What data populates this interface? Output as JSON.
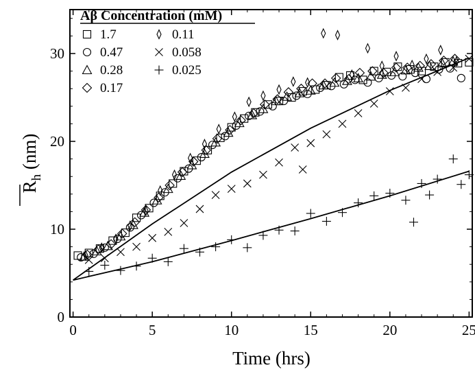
{
  "chart_data": {
    "type": "scatter",
    "xlabel": "Time (hrs)",
    "ylabel": "R",
    "ylabel_sub": "h",
    "ylabel_unit": " (nm)",
    "xlim": [
      -0.2,
      25.2
    ],
    "ylim": [
      0,
      35
    ],
    "xticks": [
      0,
      5,
      10,
      15,
      20,
      25
    ],
    "yticks": [
      0,
      10,
      20,
      30
    ],
    "grid": false,
    "legend": {
      "title": "Aβ Concentration (mM)",
      "placement": "top-left"
    },
    "series": [
      {
        "name": "1.7",
        "marker": "square",
        "legend_col": 0,
        "legend_row": 0,
        "x": [
          0.3,
          1.0,
          1.7,
          2.5,
          3.3,
          4.0,
          4.8,
          5.5,
          6.3,
          7.0,
          7.8,
          8.5,
          9.3,
          10.0,
          10.8,
          11.5,
          12.3,
          13.0,
          13.8,
          14.5,
          15.3,
          16.0,
          16.8,
          17.5,
          18.3,
          19.0,
          19.8,
          20.5,
          21.3,
          22.0,
          22.8,
          23.5,
          24.3,
          25.0
        ],
        "y": [
          7.0,
          7.3,
          7.8,
          8.7,
          9.6,
          11.3,
          12.4,
          13.8,
          15.2,
          16.6,
          17.8,
          19.0,
          20.4,
          21.6,
          22.6,
          23.3,
          24.2,
          24.6,
          25.0,
          25.7,
          25.9,
          26.4,
          27.3,
          27.5,
          27.0,
          28.0,
          27.9,
          28.5,
          28.2,
          28.0,
          28.5,
          29.0,
          28.9,
          29.0
        ]
      },
      {
        "name": "0.47",
        "marker": "circle",
        "legend_col": 0,
        "legend_row": 1,
        "x": [
          0.5,
          1.3,
          2.0,
          2.8,
          3.6,
          4.3,
          5.1,
          5.8,
          6.6,
          7.3,
          8.1,
          8.8,
          9.6,
          10.3,
          11.1,
          11.8,
          12.6,
          13.3,
          14.1,
          14.8,
          15.6,
          16.3,
          17.1,
          17.8,
          18.6,
          19.3,
          20.1,
          20.8,
          21.6,
          22.3,
          23.1,
          23.8,
          24.5
        ],
        "y": [
          6.8,
          7.2,
          7.9,
          8.9,
          10.2,
          11.6,
          13.0,
          14.2,
          15.8,
          16.9,
          18.2,
          19.6,
          20.6,
          21.8,
          22.9,
          23.4,
          24.0,
          24.6,
          25.2,
          25.4,
          26.1,
          26.3,
          26.5,
          27.0,
          26.7,
          27.2,
          27.5,
          27.4,
          27.8,
          27.1,
          28.2,
          28.3,
          27.2
        ]
      },
      {
        "name": "0.28",
        "marker": "triangle",
        "legend_col": 0,
        "legend_row": 2,
        "x": [
          0.7,
          1.5,
          2.2,
          3.0,
          3.8,
          4.5,
          5.3,
          6.0,
          6.8,
          7.5,
          8.3,
          9.0,
          9.8,
          10.5,
          11.3,
          12.0,
          12.8,
          13.5,
          14.3,
          15.0,
          15.8,
          16.5,
          17.3,
          18.0,
          18.8,
          19.5,
          20.3,
          21.0,
          21.8,
          22.5,
          23.3,
          24.0
        ],
        "y": [
          6.9,
          7.5,
          8.1,
          9.2,
          10.5,
          11.9,
          13.3,
          14.6,
          16.1,
          17.3,
          18.6,
          19.9,
          21.0,
          22.1,
          23.0,
          23.7,
          24.6,
          25.1,
          25.5,
          25.8,
          26.4,
          26.7,
          26.9,
          27.2,
          27.4,
          27.6,
          27.9,
          28.1,
          28.4,
          28.6,
          28.9,
          29.1
        ]
      },
      {
        "name": "0.17",
        "marker": "diamond",
        "legend_col": 0,
        "legend_row": 3,
        "x": [
          0.9,
          1.6,
          2.4,
          3.1,
          3.9,
          4.6,
          5.4,
          6.1,
          6.9,
          7.6,
          8.4,
          9.1,
          9.9,
          10.6,
          11.4,
          12.1,
          12.9,
          13.6,
          14.4,
          15.1,
          15.9,
          16.6,
          17.4,
          18.1,
          18.9,
          19.6,
          20.4,
          21.1,
          21.9,
          22.6,
          23.4,
          24.1
        ],
        "y": [
          7.1,
          7.7,
          8.3,
          9.5,
          10.8,
          12.2,
          13.6,
          15.0,
          16.5,
          17.7,
          19.0,
          20.3,
          21.3,
          22.4,
          23.2,
          24.2,
          24.8,
          25.6,
          26.0,
          26.6,
          26.6,
          27.2,
          27.1,
          27.8,
          28.0,
          27.8,
          28.4,
          28.4,
          28.6,
          28.8,
          29.2,
          29.4
        ]
      },
      {
        "name": "0.11",
        "marker": "thin-diamond",
        "legend_col": 1,
        "legend_row": 0,
        "x": [
          0.8,
          1.8,
          2.7,
          3.6,
          4.6,
          5.5,
          6.4,
          7.4,
          8.3,
          9.2,
          10.2,
          11.1,
          12.0,
          13.0,
          13.9,
          14.8,
          15.8,
          16.7,
          17.6,
          18.6,
          19.5,
          20.4,
          21.4,
          22.3,
          23.2,
          24.2
        ],
        "y": [
          7.0,
          7.9,
          8.9,
          10.4,
          12.1,
          14.4,
          16.2,
          18.1,
          19.7,
          21.4,
          22.8,
          24.5,
          25.2,
          25.9,
          26.8,
          26.7,
          32.3,
          32.1,
          27.6,
          30.6,
          28.6,
          29.7,
          28.7,
          29.4,
          30.4,
          29.1
        ]
      },
      {
        "name": "0.058",
        "marker": "x",
        "legend_col": 1,
        "legend_row": 1,
        "x": [
          1.0,
          2.0,
          3.0,
          4.0,
          5.0,
          6.0,
          7.0,
          8.0,
          9.0,
          10.0,
          11.0,
          12.0,
          13.0,
          14.0,
          14.5,
          15.0,
          16.0,
          17.0,
          18.0,
          19.0,
          20.0,
          21.0,
          22.0,
          23.0,
          24.0,
          25.0
        ],
        "y": [
          6.5,
          6.7,
          7.4,
          8.0,
          9.0,
          9.7,
          10.7,
          12.3,
          13.9,
          14.6,
          15.2,
          16.2,
          17.6,
          19.3,
          16.8,
          19.8,
          20.8,
          22.0,
          23.2,
          24.3,
          25.7,
          26.1,
          27.1,
          27.9,
          28.4,
          29.4
        ]
      },
      {
        "name": "0.025",
        "marker": "plus",
        "legend_col": 1,
        "legend_row": 2,
        "x": [
          1.0,
          2.0,
          3.0,
          4.0,
          5.0,
          6.0,
          7.0,
          8.0,
          9.0,
          10.0,
          11.0,
          12.0,
          13.0,
          14.0,
          15.0,
          16.0,
          17.0,
          18.0,
          19.0,
          20.0,
          21.0,
          21.5,
          22.0,
          22.5,
          23.0,
          24.0,
          24.5,
          25.0
        ],
        "y": [
          5.2,
          5.9,
          5.3,
          5.8,
          6.7,
          6.3,
          7.8,
          7.4,
          8.0,
          8.8,
          7.9,
          9.3,
          9.9,
          9.8,
          11.8,
          10.9,
          11.9,
          13.0,
          13.8,
          14.1,
          13.3,
          10.8,
          15.2,
          13.9,
          15.7,
          18.0,
          15.1,
          16.2
        ]
      }
    ],
    "fit_curves": [
      {
        "x": [
          0,
          5,
          10,
          15,
          20,
          25
        ],
        "y": [
          4.2,
          10.6,
          16.5,
          21.5,
          25.8,
          29.5
        ]
      },
      {
        "x": [
          0,
          5,
          10,
          15,
          20,
          25
        ],
        "y": [
          4.2,
          6.3,
          8.7,
          11.2,
          13.8,
          16.6
        ]
      }
    ]
  }
}
